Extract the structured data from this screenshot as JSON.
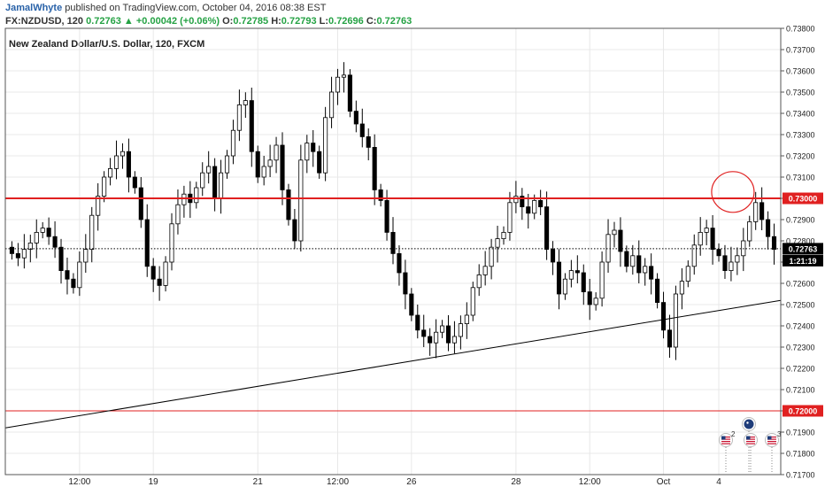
{
  "header": {
    "author": "JamalWhyte",
    "published": " published on TradingView.com, October 04, 2016 08:38 EST",
    "symbol": "FX:NZDUSD, 120",
    "last": "0.72763",
    "change": "+0.00042 (+0.06%)",
    "o_label": "O:",
    "o_value": "0.72785",
    "h_label": "H:",
    "h_value": "0.72793",
    "l_label": "L:",
    "l_value": "0.72696",
    "c_label": "C:",
    "c_value": "0.72763"
  },
  "colors": {
    "red_line": "#e02020",
    "up_icon": "#25a244",
    "candle_down": "#000000",
    "candle_up": "#ffffff",
    "label_red": "#e02020",
    "label_dark": "#000000",
    "grid": "#e8e8e8"
  },
  "chart_data": {
    "type": "candlestick",
    "title": "New Zealand Dollar/U.S. Dollar, 120, FXCM",
    "ylim": [
      0.717,
      0.738
    ],
    "y_ticks": [
      "0.73800",
      "0.73700",
      "0.73600",
      "0.73500",
      "0.73400",
      "0.73300",
      "0.73200",
      "0.73100",
      "0.73000",
      "0.72900",
      "0.72800",
      "0.72700",
      "0.72600",
      "0.72500",
      "0.72400",
      "0.72300",
      "0.72200",
      "0.72100",
      "0.72000",
      "0.71900",
      "0.71800",
      "0.71700"
    ],
    "x_ticks": [
      {
        "label": "12:00",
        "index": 11
      },
      {
        "label": "19",
        "index": 23
      },
      {
        "label": "21",
        "index": 40
      },
      {
        "label": "12:00",
        "index": 53
      },
      {
        "label": "26",
        "index": 65
      },
      {
        "label": "28",
        "index": 82
      },
      {
        "label": "12:00",
        "index": 94
      },
      {
        "label": "Oct",
        "index": 106
      },
      {
        "label": "4",
        "index": 115
      }
    ],
    "closes": [
      0.7274,
      0.7272,
      0.7276,
      0.7279,
      0.7284,
      0.7286,
      0.7282,
      0.7277,
      0.7266,
      0.7262,
      0.7258,
      0.727,
      0.7276,
      0.7292,
      0.7301,
      0.731,
      0.7314,
      0.732,
      0.7322,
      0.731,
      0.7305,
      0.729,
      0.7268,
      0.7262,
      0.7259,
      0.727,
      0.7288,
      0.7297,
      0.7302,
      0.7298,
      0.7305,
      0.7312,
      0.7315,
      0.73,
      0.7312,
      0.732,
      0.7332,
      0.7344,
      0.7346,
      0.7322,
      0.731,
      0.7315,
      0.7318,
      0.7325,
      0.7304,
      0.729,
      0.728,
      0.7318,
      0.7326,
      0.7322,
      0.7312,
      0.7338,
      0.735,
      0.7357,
      0.7358,
      0.7341,
      0.7335,
      0.7329,
      0.7324,
      0.7304,
      0.7299,
      0.7284,
      0.7274,
      0.7265,
      0.7255,
      0.7245,
      0.7238,
      0.7235,
      0.7232,
      0.7237,
      0.724,
      0.7232,
      0.7235,
      0.7241,
      0.7245,
      0.7258,
      0.7264,
      0.7268,
      0.7277,
      0.7281,
      0.7284,
      0.7298,
      0.7301,
      0.7296,
      0.7293,
      0.7299,
      0.7296,
      0.7276,
      0.727,
      0.7255,
      0.7262,
      0.7266,
      0.7265,
      0.7256,
      0.725,
      0.7253,
      0.727,
      0.7283,
      0.7285,
      0.7275,
      0.7268,
      0.7273,
      0.7265,
      0.7268,
      0.7262,
      0.7251,
      0.7238,
      0.723,
      0.7255,
      0.7261,
      0.7268,
      0.7278,
      0.7284,
      0.7286,
      0.7276,
      0.7273,
      0.7266,
      0.727,
      0.7273,
      0.728,
      0.7289,
      0.7298,
      0.729,
      0.7282,
      0.7276
    ],
    "annotations": {
      "resistance": {
        "price": 0.73,
        "label": "0.73000"
      },
      "support": {
        "price": 0.72,
        "label": "0.72000"
      },
      "last_price": {
        "price": 0.72763,
        "label": "0.72763",
        "countdown": "1:21:19"
      },
      "trendline": {
        "from": {
          "index": 0,
          "price": 0.7192
        },
        "to": {
          "index": 126,
          "price": 0.7252
        }
      },
      "circle": {
        "index": 117,
        "price": 0.7303
      }
    },
    "events": [
      {
        "flag": "us",
        "count": "2"
      },
      {
        "flag": "au",
        "count": ""
      },
      {
        "flag": "us",
        "count": ""
      },
      {
        "flag": "us",
        "count": "3"
      }
    ]
  }
}
